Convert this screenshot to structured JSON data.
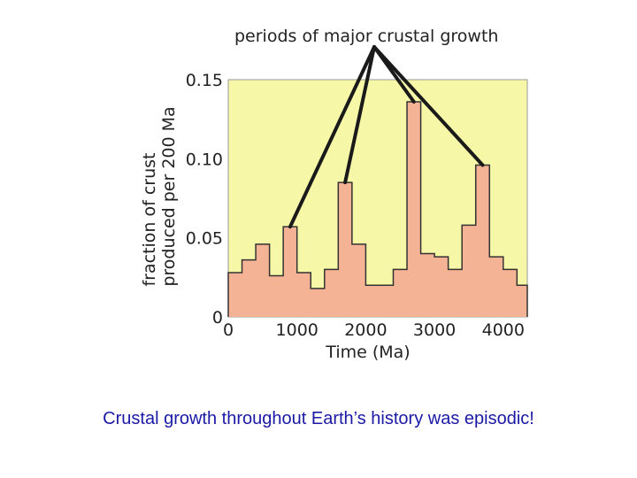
{
  "chart_data": {
    "type": "area",
    "title": "",
    "annotation": "periods of major crustal growth",
    "xlabel": "Time (Ma)",
    "ylabel_line1": "fraction of crust",
    "ylabel_line2": "produced per 200 Ma",
    "xlim": [
      0,
      4350
    ],
    "ylim": [
      0,
      0.15
    ],
    "x_ticks": [
      0,
      1000,
      2000,
      3000,
      4000
    ],
    "x_tick_labels": [
      "0",
      "1000",
      "2000",
      "3000",
      "4000"
    ],
    "y_ticks": [
      0,
      0.05,
      0.1,
      0.15
    ],
    "y_tick_labels": [
      "0",
      "0.05",
      "0.10",
      "0.15"
    ],
    "steps": [
      {
        "x0": 0,
        "x1": 200,
        "y": 0.028
      },
      {
        "x0": 200,
        "x1": 400,
        "y": 0.036
      },
      {
        "x0": 400,
        "x1": 600,
        "y": 0.046
      },
      {
        "x0": 600,
        "x1": 800,
        "y": 0.026
      },
      {
        "x0": 800,
        "x1": 1000,
        "y": 0.057
      },
      {
        "x0": 1000,
        "x1": 1200,
        "y": 0.028
      },
      {
        "x0": 1200,
        "x1": 1400,
        "y": 0.018
      },
      {
        "x0": 1400,
        "x1": 1600,
        "y": 0.03
      },
      {
        "x0": 1600,
        "x1": 1800,
        "y": 0.085
      },
      {
        "x0": 1800,
        "x1": 2000,
        "y": 0.046
      },
      {
        "x0": 2000,
        "x1": 2200,
        "y": 0.02
      },
      {
        "x0": 2200,
        "x1": 2400,
        "y": 0.02
      },
      {
        "x0": 2400,
        "x1": 2600,
        "y": 0.03
      },
      {
        "x0": 2600,
        "x1": 2800,
        "y": 0.136
      },
      {
        "x0": 2800,
        "x1": 3000,
        "y": 0.04
      },
      {
        "x0": 3000,
        "x1": 3200,
        "y": 0.038
      },
      {
        "x0": 3200,
        "x1": 3400,
        "y": 0.03
      },
      {
        "x0": 3400,
        "x1": 3600,
        "y": 0.058
      },
      {
        "x0": 3600,
        "x1": 3800,
        "y": 0.096
      },
      {
        "x0": 3800,
        "x1": 4000,
        "y": 0.038
      },
      {
        "x0": 4000,
        "x1": 4200,
        "y": 0.03
      },
      {
        "x0": 4200,
        "x1": 4350,
        "y": 0.02
      }
    ],
    "pointer_targets": [
      {
        "x": 900,
        "y": 0.057
      },
      {
        "x": 1700,
        "y": 0.085
      },
      {
        "x": 2700,
        "y": 0.136
      },
      {
        "x": 3700,
        "y": 0.096
      }
    ],
    "colors": {
      "plot_background": "#f7f7a8",
      "fill": "#f4b394",
      "outline": "#333333",
      "pointer": "#1a1a1a",
      "caption": "#1a1aa6"
    }
  },
  "caption": "Crustal growth throughout Earth’s history was episodic!"
}
